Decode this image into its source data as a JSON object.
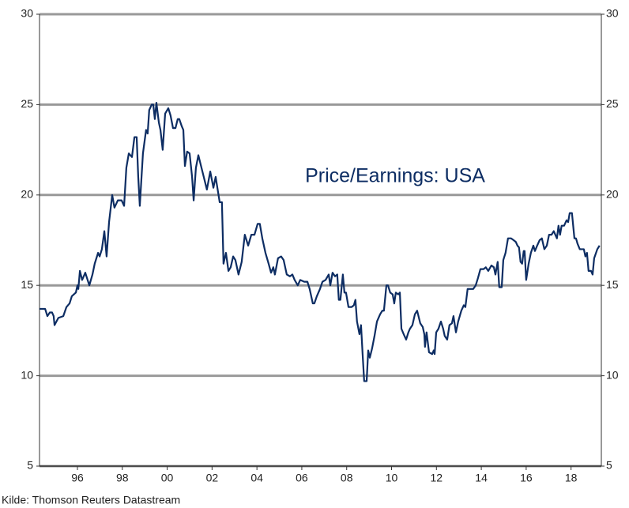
{
  "chart_data": {
    "type": "line",
    "annotation": "Price/Earnings: USA",
    "source": "Kilde: Thomson Reuters Datastream",
    "x": [
      1994.31,
      1994.56,
      1994.66,
      1994.77,
      1994.87,
      1994.94,
      1994.98,
      1995.15,
      1995.37,
      1995.51,
      1995.65,
      1995.75,
      1995.93,
      1996.0,
      1996.04,
      1996.11,
      1996.21,
      1996.35,
      1996.53,
      1996.67,
      1996.77,
      1996.92,
      1996.99,
      1997.09,
      1997.2,
      1997.3,
      1997.41,
      1997.55,
      1997.65,
      1997.8,
      1997.97,
      1998.08,
      1998.18,
      1998.29,
      1998.43,
      1998.54,
      1998.64,
      1998.71,
      1998.78,
      1998.92,
      1999.06,
      1999.13,
      1999.2,
      1999.31,
      1999.38,
      1999.45,
      1999.52,
      1999.63,
      1999.7,
      1999.8,
      1999.91,
      2000.05,
      2000.15,
      2000.26,
      2000.37,
      2000.47,
      2000.54,
      2000.65,
      2000.72,
      2000.79,
      2000.89,
      2001.0,
      2001.11,
      2001.18,
      2001.28,
      2001.39,
      2001.53,
      2001.63,
      2001.77,
      2001.92,
      2002.06,
      2002.16,
      2002.34,
      2002.44,
      2002.51,
      2002.62,
      2002.73,
      2002.83,
      2002.94,
      2003.04,
      2003.18,
      2003.32,
      2003.46,
      2003.61,
      2003.75,
      2003.89,
      2004.03,
      2004.13,
      2004.24,
      2004.38,
      2004.52,
      2004.63,
      2004.73,
      2004.8,
      2004.94,
      2005.08,
      2005.19,
      2005.33,
      2005.47,
      2005.58,
      2005.68,
      2005.82,
      2005.93,
      2006.11,
      2006.25,
      2006.35,
      2006.49,
      2006.56,
      2006.67,
      2006.81,
      2006.92,
      2007.06,
      2007.2,
      2007.27,
      2007.37,
      2007.48,
      2007.58,
      2007.65,
      2007.72,
      2007.83,
      2007.9,
      2007.97,
      2008.08,
      2008.22,
      2008.32,
      2008.39,
      2008.46,
      2008.57,
      2008.64,
      2008.71,
      2008.78,
      2008.89,
      2008.96,
      2009.03,
      2009.13,
      2009.24,
      2009.35,
      2009.49,
      2009.59,
      2009.66,
      2009.77,
      2009.84,
      2009.94,
      2010.05,
      2010.12,
      2010.19,
      2010.3,
      2010.37,
      2010.44,
      2010.54,
      2010.65,
      2010.75,
      2010.82,
      2010.93,
      2011.04,
      2011.14,
      2011.28,
      2011.39,
      2011.46,
      2011.49,
      2011.56,
      2011.67,
      2011.81,
      2011.88,
      2011.92,
      2011.99,
      2012.09,
      2012.2,
      2012.3,
      2012.37,
      2012.48,
      2012.58,
      2012.69,
      2012.76,
      2012.87,
      2012.97,
      2013.11,
      2013.22,
      2013.29,
      2013.39,
      2013.54,
      2013.64,
      2013.75,
      2013.85,
      2013.96,
      2014.1,
      2014.2,
      2014.31,
      2014.45,
      2014.56,
      2014.63,
      2014.73,
      2014.8,
      2014.91,
      2014.98,
      2015.08,
      2015.19,
      2015.33,
      2015.44,
      2015.54,
      2015.61,
      2015.68,
      2015.75,
      2015.82,
      2015.89,
      2015.93,
      2016.0,
      2016.11,
      2016.21,
      2016.32,
      2016.39,
      2016.49,
      2016.6,
      2016.7,
      2016.81,
      2016.92,
      2017.02,
      2017.13,
      2017.23,
      2017.3,
      2017.37,
      2017.44,
      2017.51,
      2017.58,
      2017.69,
      2017.8,
      2017.87,
      2017.94,
      2018.04,
      2018.15,
      2018.22,
      2018.29,
      2018.39,
      2018.5,
      2018.57,
      2018.64,
      2018.71,
      2018.78,
      2018.89,
      2018.96,
      2019.03,
      2019.17,
      2019.27
    ],
    "series": [
      {
        "color": "#0d2d63",
        "values": [
          13.7,
          13.7,
          13.3,
          13.5,
          13.5,
          13.3,
          12.8,
          13.2,
          13.3,
          13.8,
          14.0,
          14.4,
          14.6,
          15.0,
          14.8,
          15.8,
          15.3,
          15.7,
          15.0,
          15.6,
          16.2,
          16.8,
          16.6,
          17.0,
          18.0,
          16.6,
          18.5,
          20.0,
          19.3,
          19.7,
          19.7,
          19.4,
          21.5,
          22.3,
          22.1,
          23.2,
          23.2,
          21.0,
          19.4,
          22.3,
          23.6,
          23.4,
          24.7,
          25.0,
          25.0,
          24.2,
          25.1,
          24.0,
          23.6,
          22.5,
          24.5,
          24.8,
          24.4,
          23.7,
          23.7,
          24.2,
          24.2,
          23.8,
          23.6,
          21.6,
          22.4,
          22.3,
          21.0,
          19.7,
          21.5,
          22.2,
          21.5,
          21.0,
          20.3,
          21.3,
          20.4,
          21.0,
          19.6,
          19.6,
          16.2,
          16.8,
          15.8,
          16.0,
          16.6,
          16.4,
          15.6,
          16.3,
          17.8,
          17.2,
          17.8,
          17.8,
          18.4,
          18.4,
          17.6,
          16.8,
          16.2,
          15.7,
          16.0,
          15.6,
          16.5,
          16.6,
          16.4,
          15.6,
          15.5,
          15.6,
          15.3,
          15.0,
          15.3,
          15.2,
          15.2,
          14.8,
          14.0,
          14.0,
          14.4,
          14.8,
          15.2,
          15.3,
          15.6,
          15.0,
          15.7,
          15.5,
          15.6,
          14.2,
          14.2,
          15.6,
          14.6,
          14.6,
          13.8,
          13.8,
          13.9,
          14.2,
          13.0,
          12.3,
          12.8,
          11.2,
          9.7,
          9.7,
          11.4,
          11.0,
          11.5,
          12.2,
          13.0,
          13.4,
          13.6,
          13.6,
          15.0,
          15.0,
          14.6,
          14.5,
          14.0,
          14.6,
          14.5,
          14.6,
          12.6,
          12.3,
          12.0,
          12.4,
          12.6,
          12.8,
          13.4,
          13.6,
          12.9,
          12.7,
          12.3,
          11.6,
          12.4,
          11.3,
          11.2,
          11.4,
          11.2,
          12.4,
          12.6,
          13.0,
          12.6,
          12.2,
          12.0,
          12.8,
          12.9,
          13.3,
          12.4,
          13.0,
          13.6,
          13.9,
          13.8,
          14.8,
          14.8,
          14.8,
          15.0,
          15.4,
          15.9,
          15.9,
          16.0,
          15.8,
          16.1,
          16.0,
          15.6,
          16.3,
          14.9,
          14.9,
          16.4,
          16.8,
          17.6,
          17.6,
          17.5,
          17.4,
          17.2,
          17.1,
          16.3,
          16.2,
          16.9,
          16.9,
          15.3,
          16.2,
          16.8,
          17.2,
          16.9,
          17.2,
          17.5,
          17.6,
          17.0,
          17.2,
          17.8,
          17.8,
          18.0,
          17.8,
          17.6,
          18.3,
          17.8,
          18.3,
          18.3,
          18.6,
          18.5,
          19.0,
          19.0,
          17.6,
          17.6,
          17.3,
          17.0,
          17.0,
          17.0,
          16.6,
          16.8,
          15.8,
          15.8,
          15.6,
          16.5,
          17.0,
          17.2
        ]
      }
    ],
    "xlim": [
      1994.31,
      2019.35
    ],
    "xticks": [
      {
        "value": 1996,
        "label": "96"
      },
      {
        "value": 1998,
        "label": "98"
      },
      {
        "value": 2000,
        "label": "00"
      },
      {
        "value": 2002,
        "label": "02"
      },
      {
        "value": 2004,
        "label": "04"
      },
      {
        "value": 2006,
        "label": "06"
      },
      {
        "value": 2008,
        "label": "08"
      },
      {
        "value": 2010,
        "label": "10"
      },
      {
        "value": 2012,
        "label": "12"
      },
      {
        "value": 2014,
        "label": "14"
      },
      {
        "value": 2016,
        "label": "16"
      },
      {
        "value": 2018,
        "label": "18"
      }
    ],
    "ylim": [
      5,
      30
    ],
    "yticks": [
      5,
      10,
      15,
      20,
      25,
      30
    ],
    "y2lim": [
      5,
      30
    ],
    "y2ticks": [
      5,
      10,
      15,
      20,
      25,
      30
    ],
    "grid": true
  }
}
